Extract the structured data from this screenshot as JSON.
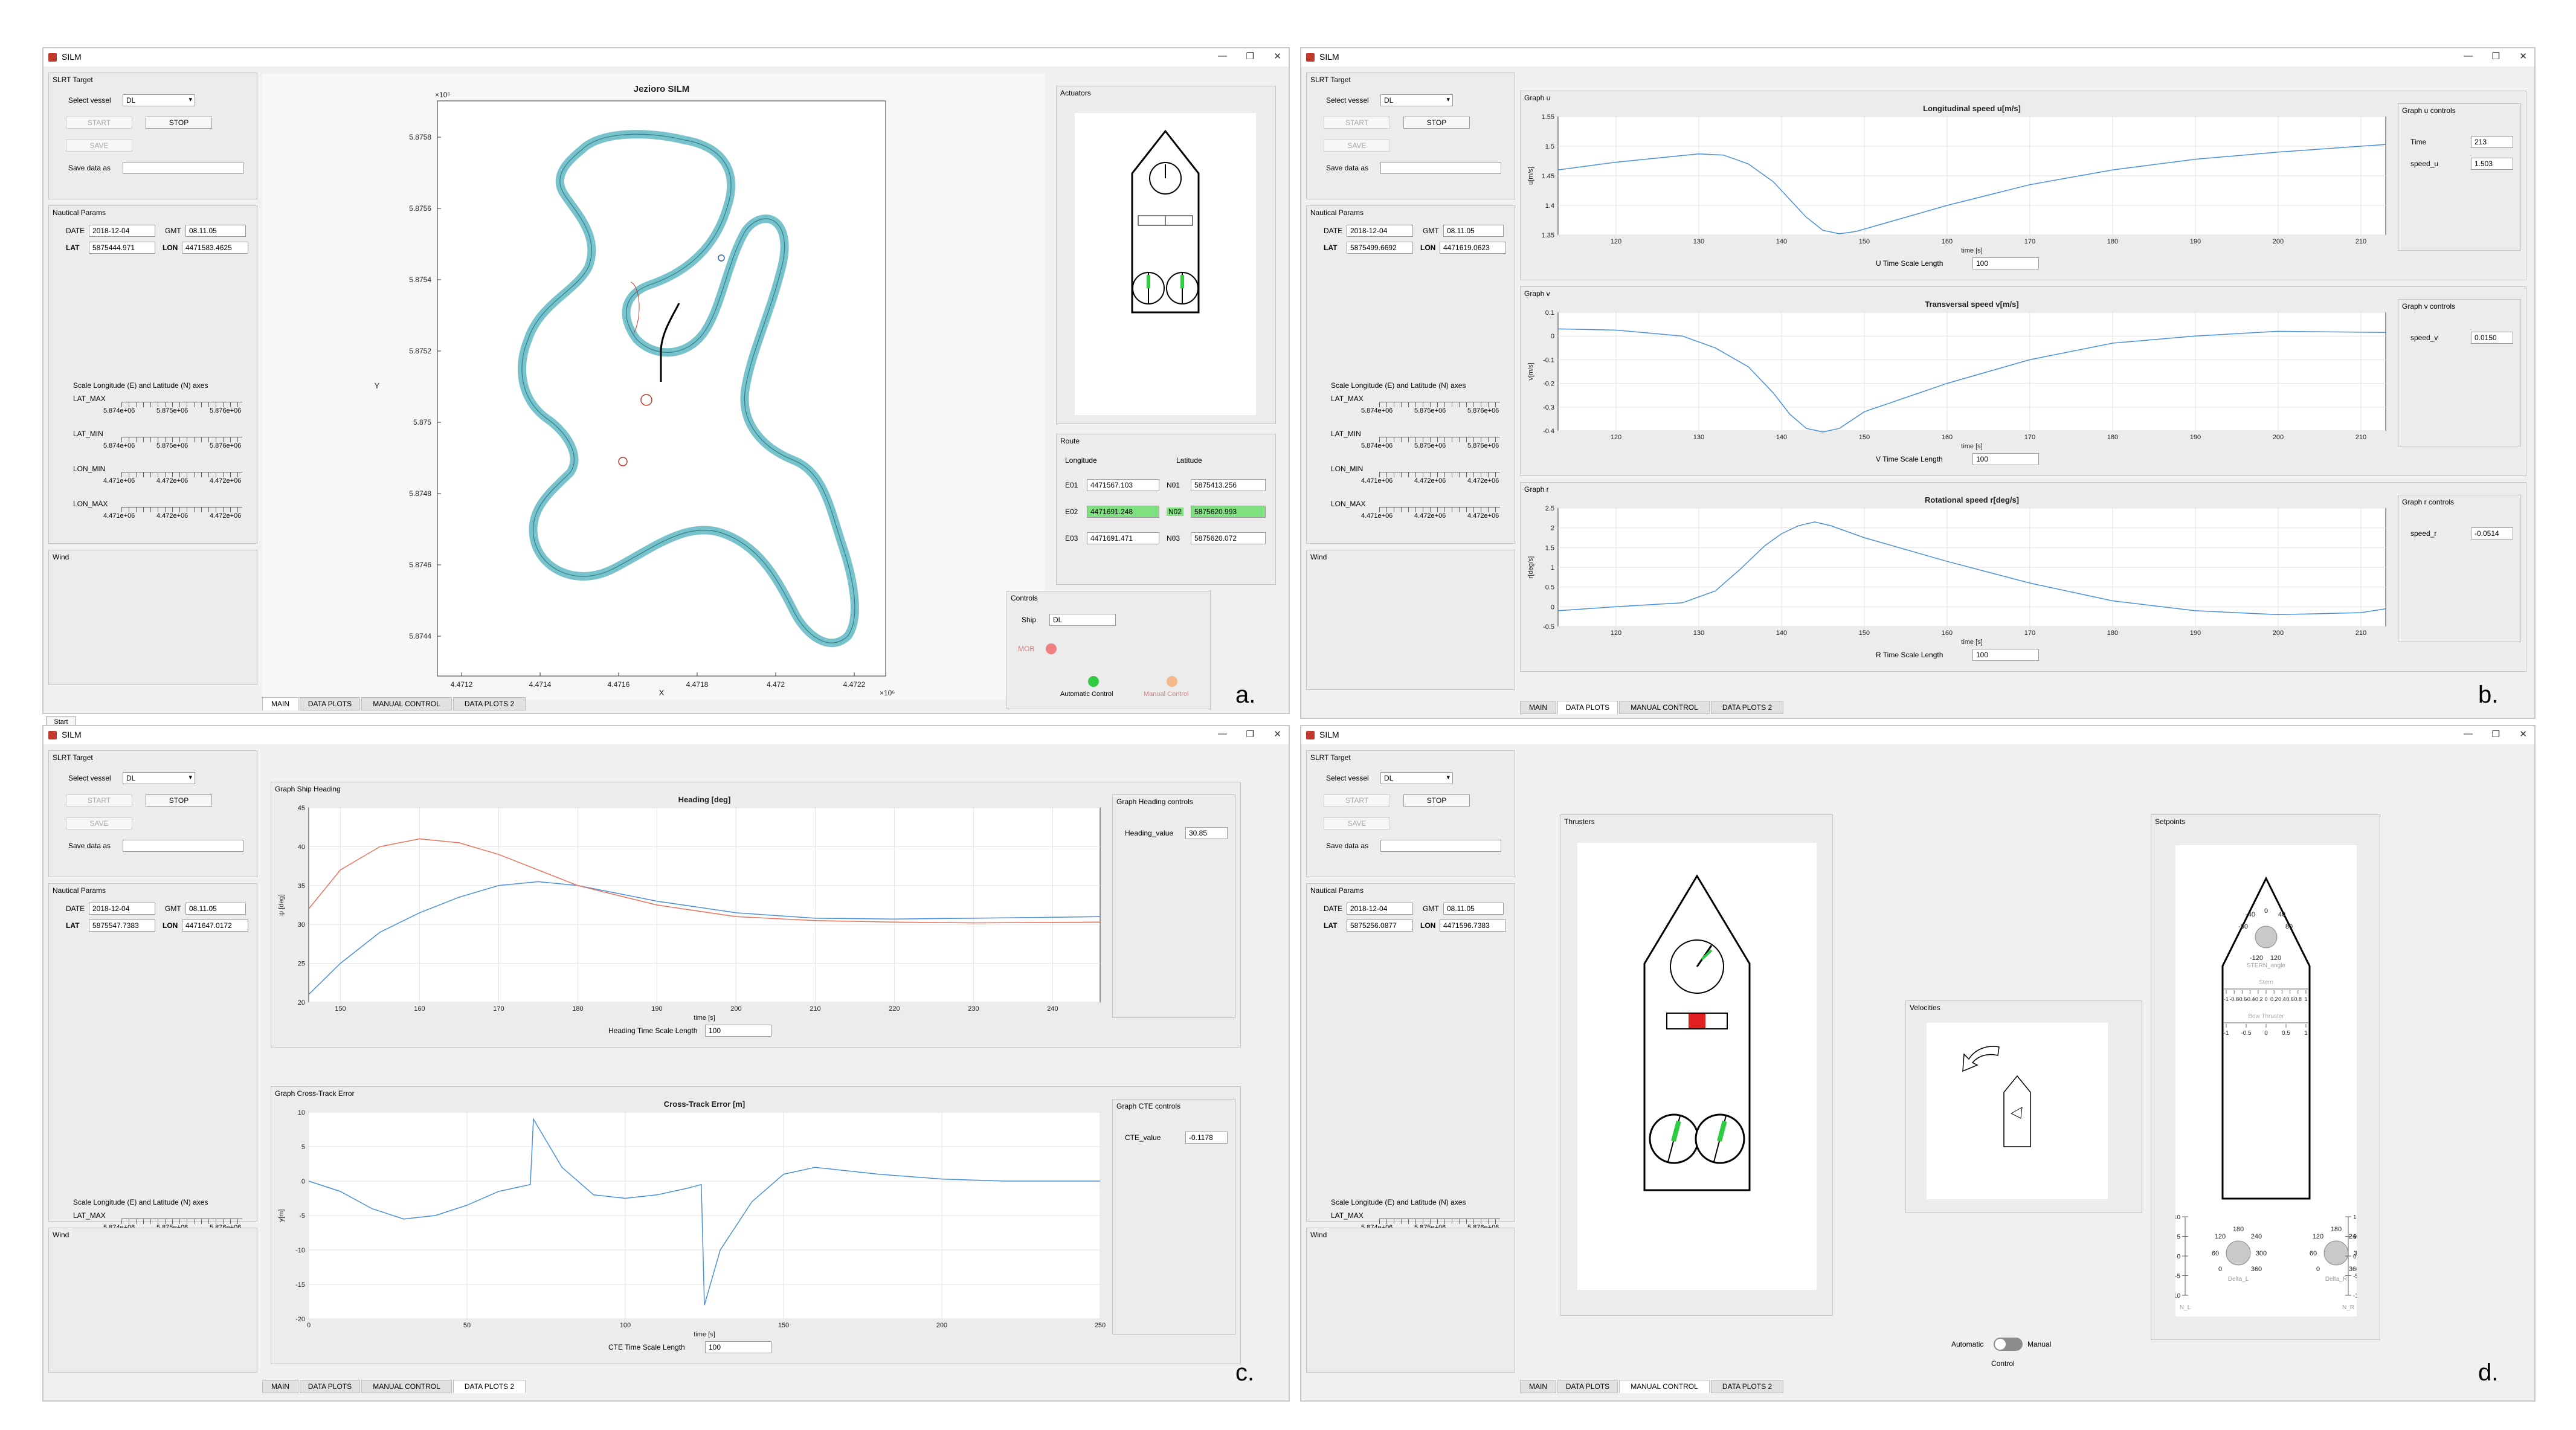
{
  "app_title": "SILM",
  "window_controls": {
    "minimize": "—",
    "maximize": "❐",
    "close": "✕"
  },
  "start_button": "Start",
  "panel_labels": [
    "a.",
    "b.",
    "c.",
    "d."
  ],
  "colors": {
    "coast": "#5fb7c2",
    "series1": "#4a90d9",
    "series2": "#e8735c",
    "active_field": "#7ee07e",
    "led_green": "#2ecc40",
    "led_red": "#f08080",
    "led_orange": "#f5b88a"
  },
  "tabs": [
    "MAIN",
    "DATA PLOTS",
    "MANUAL CONTROL",
    "DATA PLOTS 2"
  ],
  "sidebar": {
    "slrt_target": "SLRT Target",
    "select_vessel_label": "Select vessel",
    "vessel": "DL",
    "start": "START",
    "stop": "STOP",
    "save": "SAVE",
    "save_data_as": "Save data as",
    "nautical_params": "Nautical Params",
    "date_label": "DATE",
    "gmt_label": "GMT",
    "lat_label": "LAT",
    "lon_label": "LON",
    "date": "2018-12-04",
    "gmt": "08.11.05",
    "scale_title": "Scale Longitude (E) and Latitude (N) axes",
    "sliders": [
      {
        "label": "LAT_MAX",
        "ticks": [
          "5.874e+06",
          "5.875e+06",
          "5.876e+06"
        ]
      },
      {
        "label": "LAT_MIN",
        "ticks": [
          "5.874e+06",
          "5.875e+06",
          "5.876e+06"
        ]
      },
      {
        "label": "LON_MIN",
        "ticks": [
          "4.471e+06",
          "4.472e+06",
          "4.472e+06"
        ]
      },
      {
        "label": "LON_MAX",
        "ticks": [
          "4.471e+06",
          "4.472e+06",
          "4.472e+06"
        ]
      }
    ],
    "wind": "Wind"
  },
  "win_a": {
    "lat": "5875444.971",
    "lon": "4471583.4625",
    "map_title": "Jezioro SILM",
    "x_label": "X",
    "y_label": "Y",
    "y_exp": "×10⁶",
    "x_exp": "×10⁶",
    "y_ticks": [
      "5.8758",
      "5.8756",
      "5.8754",
      "5.8752",
      "5.875",
      "5.8748",
      "5.8746",
      "5.8744"
    ],
    "x_ticks": [
      "4.4712",
      "4.4714",
      "4.4716",
      "4.4718",
      "4.472",
      "4.4722"
    ],
    "actuators_title": "Actuators",
    "route_title": "Route",
    "route_cols": [
      "Longitude",
      "Latitude"
    ],
    "route": [
      {
        "e": "E01",
        "lon": "4471567.103",
        "n": "N01",
        "lat": "5875413.256"
      },
      {
        "e": "E02",
        "lon": "4471691.248",
        "n": "N02",
        "lat": "5875620.993"
      },
      {
        "e": "E03",
        "lon": "4471691.471",
        "n": "N03",
        "lat": "5875620.072"
      }
    ],
    "controls_title": "Controls",
    "ship_label": "Ship",
    "ship": "DL",
    "mob": "MOB",
    "auto_label": "Automatic Control",
    "manual_label": "Manual Control"
  },
  "win_b": {
    "lat": "5875499.6692",
    "lon": "4471619.0623",
    "graphs": [
      {
        "panel": "Graph u",
        "title": "Longitudinal speed u[m/s]",
        "ylabel": "u[m/s]",
        "xlabel": "time [s]",
        "controls": "Graph u controls",
        "ctrl_rows": [
          {
            "k": "Time",
            "v": "213"
          },
          {
            "k": "speed_u",
            "v": "1.503"
          }
        ],
        "scale_label": "U Time Scale Length",
        "scale": "100",
        "yticks": [
          "1.55",
          "1.5",
          "1.45",
          "1.4",
          "1.35"
        ],
        "xticks": [
          "120",
          "130",
          "140",
          "150",
          "160",
          "170",
          "180",
          "190",
          "200",
          "210"
        ]
      },
      {
        "panel": "Graph v",
        "title": "Transversal speed v[m/s]",
        "ylabel": "v[m/s]",
        "xlabel": "time [s]",
        "controls": "Graph v controls",
        "ctrl_rows": [
          {
            "k": "speed_v",
            "v": "0.0150"
          }
        ],
        "scale_label": "V Time Scale Length",
        "scale": "100",
        "yticks": [
          "0.1",
          "0",
          "-0.1",
          "-0.2",
          "-0.3",
          "-0.4"
        ],
        "xticks": [
          "120",
          "130",
          "140",
          "150",
          "160",
          "170",
          "180",
          "190",
          "200",
          "210"
        ]
      },
      {
        "panel": "Graph r",
        "title": "Rotational speed r[deg/s]",
        "ylabel": "r[deg/s]",
        "xlabel": "time [s]",
        "controls": "Graph r controls",
        "ctrl_rows": [
          {
            "k": "speed_r",
            "v": "-0.0514"
          }
        ],
        "scale_label": "R Time Scale Length",
        "scale": "100",
        "yticks": [
          "2.5",
          "2",
          "1.5",
          "1",
          "0.5",
          "0",
          "-0.5"
        ],
        "xticks": [
          "120",
          "130",
          "140",
          "150",
          "160",
          "170",
          "180",
          "190",
          "200",
          "210"
        ]
      }
    ]
  },
  "win_c": {
    "lat": "5875547.7383",
    "lon": "4471647.0172",
    "graphs": [
      {
        "panel": "Graph Ship Heading",
        "title": "Heading [deg]",
        "ylabel": "ψ [deg]",
        "xlabel": "time [s]",
        "controls": "Graph Heading controls",
        "ctrl_rows": [
          {
            "k": "Heading_value",
            "v": "30.85"
          }
        ],
        "scale_label": "Heading Time Scale Length",
        "scale": "100",
        "yticks": [
          "45",
          "40",
          "35",
          "30",
          "25",
          "20"
        ],
        "xticks": [
          "150",
          "160",
          "170",
          "180",
          "190",
          "200",
          "210",
          "220",
          "230",
          "240"
        ]
      },
      {
        "panel": "Graph Cross-Track Error",
        "title": "Cross-Track Error [m]",
        "ylabel": "y[m]",
        "xlabel": "time [s]",
        "controls": "Graph CTE controls",
        "ctrl_rows": [
          {
            "k": "CTE_value",
            "v": "-0.1178"
          }
        ],
        "scale_label": "CTE Time Scale Length",
        "scale": "100",
        "yticks": [
          "10",
          "5",
          "0",
          "-5",
          "-10",
          "-15",
          "-20"
        ],
        "xticks": [
          "0",
          "50",
          "100",
          "150",
          "200",
          "250"
        ]
      }
    ]
  },
  "win_d": {
    "lat": "5875256.0877",
    "lon": "4471596.7383",
    "thrusters_title": "Thrusters",
    "velocities_title": "Velocities",
    "setpoints_title": "Setpoints",
    "stern_knob": {
      "label": "STERN_angle",
      "ticks": [
        "0",
        "40",
        "80",
        "-40",
        "-80",
        "-120",
        "120"
      ]
    },
    "stern_slider": "Stern",
    "bow_slider": {
      "label": "Bow Thruster",
      "ticks": [
        "-1",
        "-0.5",
        "0",
        "0.5",
        "1"
      ]
    },
    "top_slider_ticks": [
      "-1",
      "-0.8",
      "-0.6",
      "-0.4",
      "-0.2",
      "0",
      "0.2",
      "0.4",
      "0.6",
      "0.8",
      "1"
    ],
    "knob_l": {
      "label": "Delta_L",
      "ticks": [
        "180",
        "120",
        "240",
        "60",
        "300",
        "0",
        "360"
      ]
    },
    "knob_r": {
      "label": "Delta_R",
      "ticks": [
        "180",
        "120",
        "240",
        "60",
        "300",
        "0",
        "360"
      ]
    },
    "vslider_ticks": [
      "10",
      "5",
      "0",
      "-5",
      "-10"
    ],
    "nl_label": "N_L",
    "nr_label": "N_R",
    "toggle_auto": "Automatic",
    "toggle_manual": "Manual",
    "toggle_caption": "Control"
  },
  "chart_data": [
    {
      "type": "line",
      "title": "Longitudinal speed u[m/s]",
      "xlabel": "time [s]",
      "ylabel": "u[m/s]",
      "xlim": [
        113,
        213
      ],
      "ylim": [
        1.35,
        1.55
      ],
      "x": [
        113,
        120,
        125,
        130,
        133,
        136,
        139,
        141,
        143,
        145,
        147,
        149,
        152,
        160,
        170,
        180,
        190,
        200,
        213
      ],
      "y": [
        1.46,
        1.473,
        1.48,
        1.487,
        1.485,
        1.47,
        1.44,
        1.41,
        1.38,
        1.358,
        1.352,
        1.356,
        1.368,
        1.4,
        1.435,
        1.46,
        1.478,
        1.49,
        1.503
      ]
    },
    {
      "type": "line",
      "title": "Transversal speed v[m/s]",
      "xlabel": "time [s]",
      "ylabel": "v[m/s]",
      "xlim": [
        113,
        213
      ],
      "ylim": [
        -0.4,
        0.1
      ],
      "x": [
        113,
        120,
        128,
        132,
        136,
        139,
        141,
        143,
        145,
        147,
        150,
        160,
        170,
        180,
        190,
        200,
        213
      ],
      "y": [
        0.03,
        0.025,
        0.0,
        -0.05,
        -0.13,
        -0.24,
        -0.33,
        -0.39,
        -0.405,
        -0.39,
        -0.32,
        -0.2,
        -0.1,
        -0.03,
        0.0,
        0.02,
        0.015
      ]
    },
    {
      "type": "line",
      "title": "Rotational speed r[deg/s]",
      "xlabel": "time [s]",
      "ylabel": "r[deg/s]",
      "xlim": [
        113,
        213
      ],
      "ylim": [
        -0.5,
        2.5
      ],
      "x": [
        113,
        120,
        128,
        132,
        135,
        138,
        140,
        142,
        144,
        146,
        150,
        160,
        170,
        180,
        190,
        200,
        210,
        213
      ],
      "y": [
        -0.1,
        0.0,
        0.1,
        0.4,
        0.95,
        1.55,
        1.85,
        2.05,
        2.15,
        2.05,
        1.75,
        1.15,
        0.6,
        0.15,
        -0.1,
        -0.2,
        -0.15,
        -0.05
      ]
    },
    {
      "type": "line",
      "title": "Heading [deg]",
      "xlabel": "time [s]",
      "ylabel": "ψ [deg]",
      "xlim": [
        146,
        246
      ],
      "ylim": [
        20,
        45
      ],
      "series": [
        {
          "x": [
            146,
            150,
            155,
            160,
            165,
            170,
            175,
            180,
            190,
            200,
            210,
            220,
            230,
            246
          ],
          "y": [
            21,
            25,
            29,
            31.5,
            33.5,
            35,
            35.5,
            35,
            33,
            31.5,
            30.8,
            30.7,
            30.8,
            31
          ]
        },
        {
          "x": [
            146,
            150,
            155,
            160,
            165,
            170,
            175,
            180,
            190,
            200,
            210,
            220,
            230,
            246
          ],
          "y": [
            32,
            37,
            40,
            41,
            40.5,
            39,
            37,
            35,
            32.5,
            31,
            30.5,
            30.3,
            30.2,
            30.3
          ]
        }
      ]
    },
    {
      "type": "line",
      "title": "Cross-Track Error [m]",
      "xlabel": "time [s]",
      "ylabel": "y[m]",
      "xlim": [
        0,
        250
      ],
      "ylim": [
        -20,
        10
      ],
      "x": [
        0,
        10,
        20,
        30,
        40,
        50,
        60,
        70,
        71,
        80,
        90,
        100,
        110,
        120,
        124,
        125,
        130,
        140,
        150,
        160,
        180,
        200,
        220,
        250
      ],
      "y": [
        0,
        -1.5,
        -4,
        -5.5,
        -5,
        -3.5,
        -1.5,
        -0.5,
        9,
        2,
        -2,
        -2.5,
        -2,
        -1,
        -0.5,
        -18,
        -10,
        -3,
        1,
        2,
        1,
        0.3,
        0,
        0
      ]
    }
  ]
}
